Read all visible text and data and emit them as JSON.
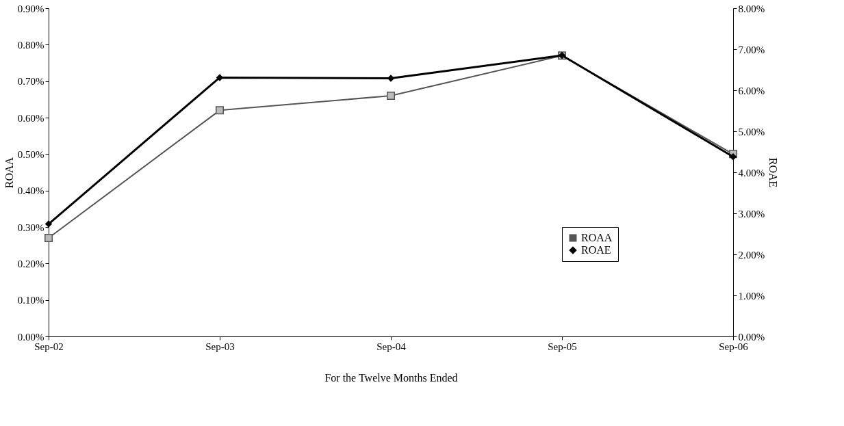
{
  "chart_data": {
    "type": "line",
    "xlabel": "For the Twelve Months Ended",
    "ylabel": "ROAA",
    "y2label": "ROAE",
    "categories": [
      "Sep-02",
      "Sep-03",
      "Sep-04",
      "Sep-05",
      "Sep-06"
    ],
    "series": [
      {
        "name": "ROAA",
        "color": "#555555",
        "marker": "square",
        "values": [
          0.27,
          0.62,
          0.66,
          0.77,
          0.5
        ]
      },
      {
        "name": "ROAE",
        "color": "#000000",
        "marker": "diamond",
        "axis": "y2",
        "values": [
          2.74,
          6.31,
          6.29,
          6.85,
          4.38
        ]
      }
    ],
    "ylim": [
      0,
      0.9
    ],
    "yticks": [
      {
        "value": 0,
        "label": "0.00%"
      },
      {
        "value": 0.1,
        "label": "0.10%"
      },
      {
        "value": 0.2,
        "label": "0.20%"
      },
      {
        "value": 0.3,
        "label": "0.30%"
      },
      {
        "value": 0.4,
        "label": "0.40%"
      },
      {
        "value": 0.5,
        "label": "0.50%"
      },
      {
        "value": 0.6,
        "label": "0.60%"
      },
      {
        "value": 0.7,
        "label": "0.70%"
      },
      {
        "value": 0.8,
        "label": "0.80%"
      },
      {
        "value": 0.9,
        "label": "0.90%"
      }
    ],
    "y2lim": [
      0,
      8
    ],
    "y2ticks": [
      {
        "value": 0,
        "label": "0.00%"
      },
      {
        "value": 1,
        "label": "1.00%"
      },
      {
        "value": 2,
        "label": "2.00%"
      },
      {
        "value": 3,
        "label": "3.00%"
      },
      {
        "value": 4,
        "label": "4.00%"
      },
      {
        "value": 5,
        "label": "5.00%"
      },
      {
        "value": 6,
        "label": "6.00%"
      },
      {
        "value": 7,
        "label": "7.00%"
      },
      {
        "value": 8,
        "label": "8.00%"
      }
    ],
    "legend": "bottom right",
    "grid": false
  }
}
